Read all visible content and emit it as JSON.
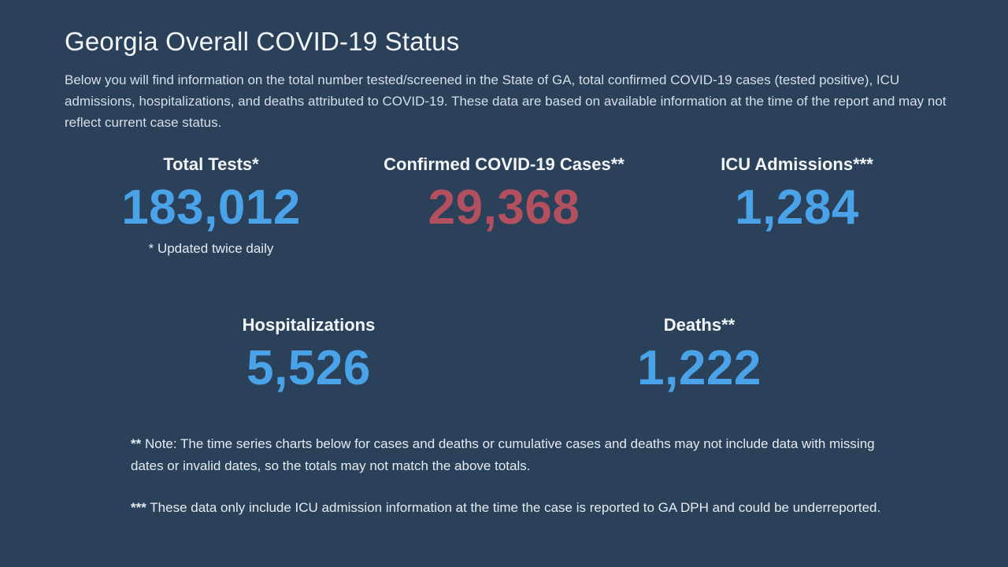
{
  "header": {
    "title": "Georgia Overall COVID-19 Status",
    "intro": "Below you will find information on the total number tested/screened in the State of GA, total confirmed COVID-19 cases (tested positive), ICU admissions, hospitalizations, and deaths attributed to COVID-19. These data are based on available information at the time of the report and may not reflect current case status."
  },
  "stats": {
    "total_tests": {
      "label": "Total Tests*",
      "value": "183,012",
      "note": "* Updated twice daily",
      "color": "#4aa3e8"
    },
    "confirmed_cases": {
      "label": "Confirmed COVID-19 Cases**",
      "value": "29,368",
      "color": "#b2505f"
    },
    "icu_admissions": {
      "label": "ICU Admissions***",
      "value": "1,284",
      "color": "#4aa3e8"
    },
    "hospitalizations": {
      "label": "Hospitalizations",
      "value": "5,526",
      "color": "#4aa3e8"
    },
    "deaths": {
      "label": "Deaths**",
      "value": "1,222",
      "color": "#4aa3e8"
    }
  },
  "footnotes": [
    {
      "marker": "**",
      "text": " Note: The time series charts below for cases and deaths or cumulative cases and deaths may not include data with missing dates or invalid dates, so the totals may not match the above totals."
    },
    {
      "marker": "***",
      "text": " These data only include ICU admission information at the time the case is reported to GA DPH and could be underreported."
    }
  ],
  "colors": {
    "background": "#2b4059",
    "accent_blue": "#4aa3e8",
    "accent_red": "#b2505f"
  }
}
